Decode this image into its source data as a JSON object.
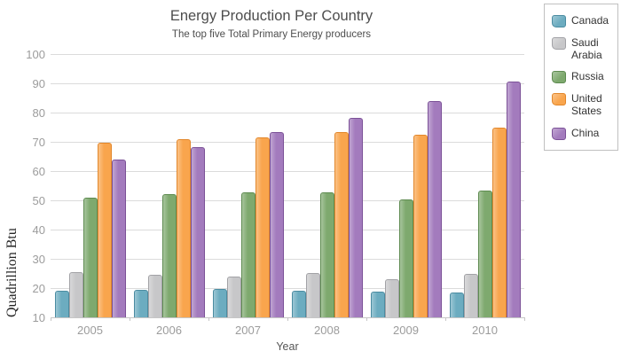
{
  "chart_data": {
    "type": "bar",
    "title": "Energy Production Per Country",
    "subtitle": "The top five Total Primary Energy producers",
    "xlabel": "Year",
    "ylabel": "Quadrillion Btu",
    "categories": [
      "2005",
      "2006",
      "2007",
      "2008",
      "2009",
      "2010"
    ],
    "y_ticks": [
      10,
      20,
      30,
      40,
      50,
      60,
      70,
      80,
      90,
      100
    ],
    "ylim": [
      10,
      100
    ],
    "grid": true,
    "legend_position": "outside-top-right",
    "series": [
      {
        "name": "Canada",
        "color": "#6CACC0",
        "border_color": "#4B8CA1",
        "values": [
          19.2,
          19.4,
          19.6,
          19.2,
          18.7,
          18.5
        ]
      },
      {
        "name": "Saudi Arabia",
        "color": "#C7C7C9",
        "border_color": "#A2A2A6",
        "values": [
          25.5,
          24.6,
          23.8,
          25.3,
          23.1,
          24.8
        ]
      },
      {
        "name": "Russia",
        "color": "#7EA96E",
        "border_color": "#5E8B50",
        "values": [
          51.0,
          52.1,
          52.6,
          52.6,
          50.4,
          53.2
        ]
      },
      {
        "name": "United States",
        "color": "#F9A54D",
        "border_color": "#E2872B",
        "values": [
          69.6,
          70.8,
          71.4,
          73.2,
          72.5,
          74.8
        ]
      },
      {
        "name": "China",
        "color": "#A37BBD",
        "border_color": "#7B5197",
        "values": [
          63.9,
          68.1,
          73.3,
          78.3,
          84.0,
          90.5
        ]
      }
    ],
    "style_colors": {
      "gridline": "#DBDBDB",
      "axis_line": "#C6C6C6",
      "tick_label": "#9C9C9C",
      "title_text": "#4D4D4D",
      "legend_border": "#C0C0C0",
      "legend_text": "#333333",
      "background": "#FFFFFF"
    }
  }
}
